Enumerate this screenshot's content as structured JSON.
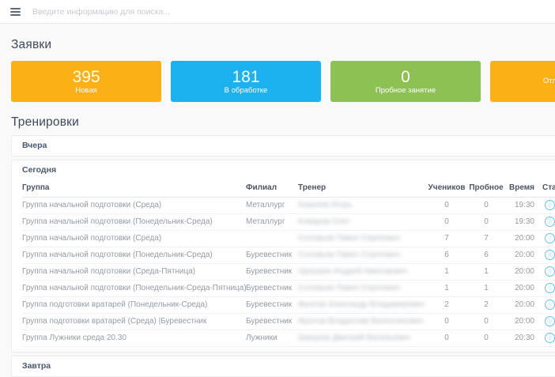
{
  "topbar": {
    "search_placeholder": "Введите информацию для поиска..."
  },
  "colors": {
    "orange": "#fbb016",
    "blue": "#1cb2ef",
    "green": "#8dc153",
    "status_circle": "#63c3f1"
  },
  "applications": {
    "title": "Заявки",
    "cards": [
      {
        "value": "395",
        "label": "Новая",
        "color": "#fbb016"
      },
      {
        "value": "181",
        "label": "В обработке",
        "color": "#1cb2ef"
      },
      {
        "value": "0",
        "label": "Пробное занятие",
        "color": "#8dc153"
      },
      {
        "value": "",
        "label": "Отложенные",
        "color": "#fbb016"
      }
    ]
  },
  "trainings": {
    "title": "Тренировки",
    "panels": {
      "yesterday": "Вчера",
      "today": "Сегодня",
      "tomorrow": "Завтра"
    },
    "table": {
      "headers": [
        "Группа",
        "Филиал",
        "Тренер",
        "Учеников",
        "Пробное",
        "Время",
        "Статус"
      ],
      "trainer_blurred": true,
      "rows": [
        {
          "group": "Группа начальной подготовки (Среда)",
          "branch": "Металлург",
          "trainer": "Ковалев Игорь",
          "students": "0",
          "trial": "0",
          "time": "19:30"
        },
        {
          "group": "Группа начальной подготовки (Понедельник-Среда)",
          "branch": "Металлург",
          "trainer": "Комаров Олег",
          "students": "0",
          "trial": "0",
          "time": "19:30"
        },
        {
          "group": "Группа начальной подготовки (Среда)",
          "branch": "",
          "trainer": "Соловьев Павел Сергеевич",
          "students": "7",
          "trial": "7",
          "time": "20:00"
        },
        {
          "group": "Группа начальной подготовки (Понедельник-Среда)",
          "branch": "Буревестник",
          "trainer": "Соловьев Павел Сергеевич",
          "students": "6",
          "trial": "6",
          "time": "20:00"
        },
        {
          "group": "Группа начальной подготовки (Среда-Пятница)",
          "branch": "Буревестник",
          "trainer": "Орешкин Андрей Николаевич",
          "students": "1",
          "trial": "1",
          "time": "20:00"
        },
        {
          "group": "Группа начальной подготовки (Понедельник-Среда-Пятница)",
          "branch": "Буревестник",
          "trainer": "Соловьев Павел Сергеевич",
          "students": "1",
          "trial": "1",
          "time": "20:00"
        },
        {
          "group": "Группа подготовки вратарей (Понедельник-Среда)",
          "branch": "Буревестник",
          "trainer": "Фролов Александр Владимирович",
          "students": "2",
          "trial": "2",
          "time": "20:00"
        },
        {
          "group": "Группа подготовки вратарей (Среда) |Буревестник",
          "branch": "Буревестник",
          "trainer": "Фролов Владислав Валентинович",
          "students": "0",
          "trial": "0",
          "time": "20:00"
        },
        {
          "group": "Группа Лужники среда 20.30",
          "branch": "Лужники",
          "trainer": "Шакуров Дмитрий Васильевич",
          "students": "0",
          "trial": "0",
          "time": "20:30"
        }
      ]
    }
  }
}
